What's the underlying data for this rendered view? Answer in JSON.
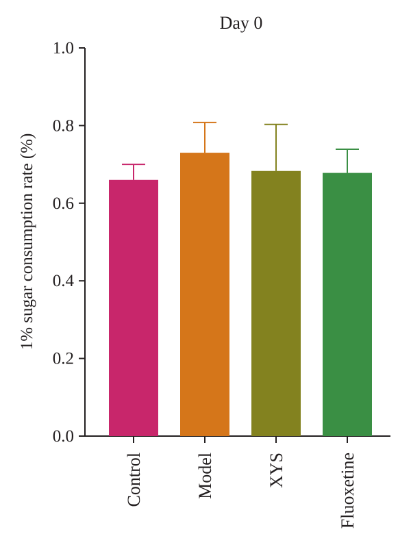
{
  "chart_data": {
    "type": "bar",
    "title": "Day 0",
    "ylabel": "1% sugar consumption rate (%)",
    "xlabel": "",
    "ylim": [
      0,
      1.0
    ],
    "yticks": [
      "0.0",
      "0.2",
      "0.4",
      "0.6",
      "0.8",
      "1.0"
    ],
    "categories": [
      "Control",
      "Model",
      "XYS",
      "Fluoxetine"
    ],
    "values": [
      0.66,
      0.73,
      0.683,
      0.678
    ],
    "error_upper": [
      0.7,
      0.808,
      0.803,
      0.739
    ],
    "colors": [
      "#c8266b",
      "#d5761a",
      "#83821f",
      "#3a8f44"
    ],
    "grid": false,
    "legend": "none"
  }
}
